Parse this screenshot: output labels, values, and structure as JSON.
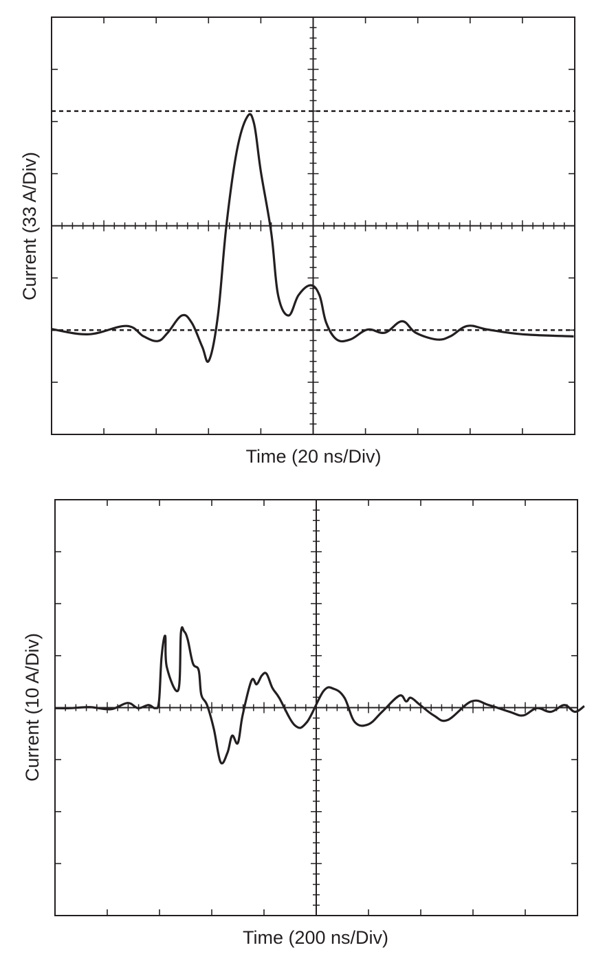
{
  "chart_data": [
    {
      "type": "line",
      "title": "",
      "xlabel": "Time (20 ns/Div)",
      "ylabel": "Current (33 A/Div)",
      "x_unit": "divisions",
      "y_unit": "divisions",
      "xlim": [
        -5,
        5
      ],
      "ylim": [
        -4,
        4
      ],
      "grid": false,
      "reference_lines_y": [
        2.2,
        -2.0
      ],
      "line_color": "#231f20",
      "series": [
        {
          "x": [
            -5.0,
            -4.29,
            -3.57,
            -3.24,
            -2.97,
            -2.78,
            -2.51,
            -2.32,
            -2.12,
            -1.99,
            -1.82,
            -1.66,
            -1.46,
            -1.26,
            -1.13,
            -1.0,
            -0.8,
            -0.67,
            -0.47,
            -0.28,
            -0.05,
            0.12,
            0.25,
            0.45,
            0.71,
            1.04,
            1.37,
            1.7,
            1.96,
            2.36,
            2.62,
            2.95,
            3.34,
            4.0,
            4.98
          ],
          "y": [
            -1.98,
            -2.08,
            -1.92,
            -2.12,
            -2.21,
            -2.05,
            -1.72,
            -1.86,
            -2.32,
            -2.58,
            -1.72,
            -0.01,
            1.43,
            2.09,
            1.96,
            1.04,
            -0.14,
            -1.33,
            -1.72,
            -1.33,
            -1.14,
            -1.33,
            -1.86,
            -2.18,
            -2.18,
            -1.99,
            -2.05,
            -1.83,
            -2.05,
            -2.18,
            -2.12,
            -1.92,
            -1.99,
            -2.08,
            -2.12
          ]
        }
      ]
    },
    {
      "type": "line",
      "title": "",
      "xlabel": "Time (200 ns/Div)",
      "ylabel": "Current (10 A/Div)",
      "x_unit": "divisions",
      "y_unit": "divisions",
      "xlim": [
        -5,
        5
      ],
      "ylim": [
        -4,
        4
      ],
      "grid": false,
      "line_color": "#231f20",
      "series": [
        {
          "x": [
            -5.01,
            -4.72,
            -4.33,
            -3.93,
            -3.61,
            -3.41,
            -3.21,
            -3.08,
            -3.01,
            -2.96,
            -2.89,
            -2.86,
            -2.64,
            -2.59,
            -2.53,
            -2.46,
            -2.36,
            -2.25,
            -2.2,
            -2.09,
            -1.96,
            -1.83,
            -1.7,
            -1.61,
            -1.5,
            -1.41,
            -1.24,
            -1.14,
            -1.04,
            -0.95,
            -0.84,
            -0.71,
            -0.41,
            -0.18,
            0.14,
            0.34,
            0.54,
            0.74,
            1.0,
            1.26,
            1.59,
            1.72,
            1.81,
            1.99,
            2.25,
            2.51,
            2.97,
            3.3,
            3.7,
            3.96,
            4.22,
            4.49,
            4.75,
            4.95,
            5.13
          ],
          "y": [
            -0.01,
            -0.01,
            0.01,
            -0.03,
            0.09,
            -0.01,
            0.05,
            -0.01,
            0.12,
            0.98,
            1.38,
            0.78,
            0.34,
            1.44,
            1.47,
            1.31,
            0.85,
            0.72,
            0.25,
            0.05,
            -0.41,
            -1.05,
            -0.87,
            -0.54,
            -0.68,
            -0.15,
            0.52,
            0.45,
            0.62,
            0.65,
            0.38,
            0.19,
            -0.34,
            -0.28,
            0.32,
            0.36,
            0.19,
            -0.28,
            -0.32,
            -0.08,
            0.23,
            0.12,
            0.19,
            0.05,
            -0.15,
            -0.24,
            0.12,
            0.05,
            -0.08,
            -0.15,
            -0.01,
            -0.08,
            0.05,
            -0.08,
            0.03
          ]
        }
      ]
    }
  ]
}
